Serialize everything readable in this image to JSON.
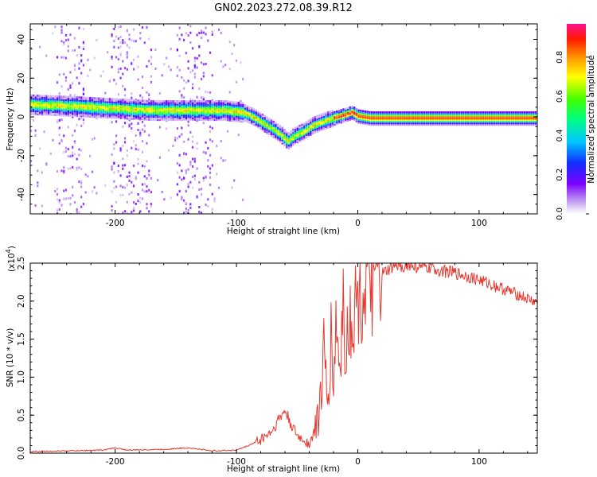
{
  "title": "GN02.2023.272.08.39.R12",
  "chart_data": [
    {
      "type": "heatmap",
      "xlabel": "Height of straight line (km)",
      "ylabel": "Frequency (Hz)",
      "xlim": [
        -270,
        148
      ],
      "ylim": [
        -50,
        48
      ],
      "xticks": [
        -200,
        -100,
        0,
        100
      ],
      "xtick_labels": [
        "-200",
        "-100",
        "0",
        "100"
      ],
      "yticks": [
        40,
        20,
        0,
        -20,
        -40
      ],
      "ytick_labels": [
        "40",
        "20",
        "0",
        "-20",
        "-40"
      ],
      "colorbar": {
        "label": "Normalized spectral amplitude",
        "range": [
          0,
          0.97
        ],
        "ticks": [
          0.0,
          0.2,
          0.4,
          0.6,
          0.8
        ],
        "tick_labels": [
          "0.0",
          "0.2",
          "0.4",
          "0.6",
          "0.8"
        ]
      },
      "frequency_track": {
        "x": [
          -270,
          -230,
          -200,
          -170,
          -140,
          -110,
          -95,
          -85,
          -75,
          -65,
          -58,
          -52,
          -45,
          -38,
          -30,
          -20,
          -10,
          -5,
          0,
          10,
          50,
          100,
          148
        ],
        "y": [
          7,
          6,
          5,
          4,
          4,
          4,
          3,
          0,
          -4,
          -8,
          -12,
          -9,
          -7,
          -4,
          -2,
          0,
          2,
          3,
          1,
          0,
          0,
          0,
          0
        ]
      }
    },
    {
      "type": "line",
      "xlabel": "Height of straight line (km)",
      "ylabel": "SNR (10 * v/v)",
      "y_scale_note": "(x10",
      "y_scale_exp": "4",
      "y_scale_close": ")",
      "xlim": [
        -270,
        148
      ],
      "ylim": [
        0,
        2.5
      ],
      "xticks": [
        -200,
        -100,
        0,
        100
      ],
      "xtick_labels": [
        "-200",
        "-100",
        "0",
        "100"
      ],
      "yticks": [
        0.0,
        0.5,
        1.0,
        1.5,
        2.0,
        2.5
      ],
      "ytick_labels": [
        "0.0",
        "0.5",
        "1.0",
        "1.5",
        "2.0",
        "2.5"
      ],
      "series": [
        {
          "color": "#e8382f",
          "x": [
            -270,
            -240,
            -210,
            -200,
            -190,
            -160,
            -140,
            -120,
            -100,
            -90,
            -80,
            -70,
            -65,
            -60,
            -55,
            -50,
            -45,
            -40,
            -35,
            -30,
            -28,
            -25,
            -22,
            -20,
            -18,
            -15,
            -12,
            -10,
            -8,
            -5,
            0,
            5,
            10,
            15,
            20,
            25,
            30,
            40,
            50,
            60,
            70,
            80,
            90,
            100,
            110,
            120,
            130,
            140,
            148
          ],
          "y": [
            0.02,
            0.03,
            0.04,
            0.07,
            0.04,
            0.05,
            0.07,
            0.03,
            0.04,
            0.1,
            0.18,
            0.3,
            0.45,
            0.55,
            0.38,
            0.22,
            0.18,
            0.12,
            0.3,
            0.8,
            1.3,
            0.6,
            1.5,
            0.9,
            1.7,
            1.1,
            1.9,
            1.4,
            1.6,
            1.8,
            2.0,
            2.1,
            2.25,
            2.2,
            2.35,
            2.4,
            2.45,
            2.47,
            2.45,
            2.43,
            2.4,
            2.37,
            2.33,
            2.28,
            2.22,
            2.16,
            2.1,
            2.03,
            1.98
          ]
        }
      ]
    }
  ]
}
